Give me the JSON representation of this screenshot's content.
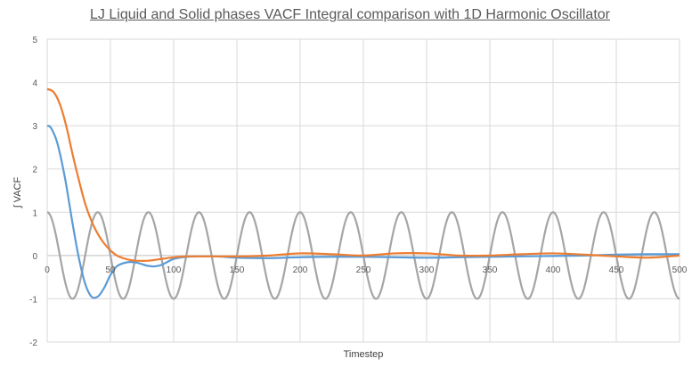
{
  "chart_data": {
    "type": "line",
    "title": "LJ Liquid and Solid phases VACF Integral comparison with 1D Harmonic Oscillator",
    "xlabel": "Timestep",
    "ylabel": "∫ VACF",
    "xlim": [
      0,
      500
    ],
    "ylim": [
      -2,
      5
    ],
    "x_ticks": [
      "0",
      "50",
      "100",
      "150",
      "200",
      "250",
      "300",
      "350",
      "400",
      "450",
      "500"
    ],
    "y_ticks": [
      "-2",
      "-1",
      "0",
      "1",
      "2",
      "3",
      "4",
      "5"
    ],
    "grid": true,
    "legend": "none",
    "series": [
      {
        "color": "#a5a5a5",
        "period": 40,
        "amplitude": 1,
        "x": [
          0,
          10,
          20,
          30,
          40,
          50,
          60,
          70,
          80,
          90,
          100,
          110,
          120,
          130,
          140,
          150,
          160,
          170,
          180,
          190,
          200,
          210,
          220,
          230,
          240,
          250,
          260,
          270,
          280,
          290,
          300,
          310,
          320,
          330,
          340,
          350,
          360,
          370,
          380,
          390,
          400,
          410,
          420,
          430,
          440,
          450,
          460,
          470,
          480,
          490,
          500
        ],
        "y": [
          1,
          0,
          -1,
          0,
          1,
          0,
          -1,
          0,
          1,
          0,
          -1,
          0,
          1,
          0,
          -1,
          0,
          1,
          0,
          -1,
          0,
          1,
          0,
          -1,
          0,
          1,
          0,
          -1,
          0,
          1,
          0,
          -1,
          0,
          1,
          0,
          -1,
          0,
          1,
          0,
          -1,
          0,
          1,
          0,
          -1,
          0,
          1,
          0,
          -1,
          0,
          1,
          0,
          -1
        ]
      },
      {
        "color": "#5b9bd5",
        "x": [
          0,
          3,
          8,
          14,
          20,
          25,
          30,
          35,
          40,
          45,
          50,
          55,
          60,
          65,
          70,
          75,
          80,
          85,
          90,
          95,
          100,
          110,
          120,
          130,
          140,
          150,
          175,
          200,
          225,
          250,
          275,
          300,
          325,
          350,
          375,
          400,
          425,
          450,
          475,
          500
        ],
        "y": [
          3.0,
          2.95,
          2.6,
          1.8,
          0.75,
          -0.05,
          -0.65,
          -0.95,
          -0.95,
          -0.75,
          -0.45,
          -0.25,
          -0.18,
          -0.15,
          -0.16,
          -0.2,
          -0.24,
          -0.25,
          -0.22,
          -0.15,
          -0.08,
          -0.03,
          -0.02,
          -0.02,
          -0.03,
          -0.05,
          -0.06,
          -0.04,
          -0.03,
          -0.03,
          -0.04,
          -0.05,
          -0.04,
          -0.03,
          -0.02,
          -0.01,
          0.0,
          0.02,
          0.03,
          0.03
        ]
      },
      {
        "color": "#ed7d31",
        "x": [
          0,
          5,
          10,
          15,
          20,
          25,
          30,
          35,
          40,
          45,
          50,
          55,
          60,
          65,
          70,
          80,
          90,
          100,
          110,
          120,
          130,
          140,
          150,
          175,
          200,
          225,
          250,
          275,
          300,
          325,
          350,
          375,
          400,
          425,
          450,
          475,
          500
        ],
        "y": [
          3.85,
          3.78,
          3.5,
          3.0,
          2.35,
          1.75,
          1.2,
          0.8,
          0.5,
          0.28,
          0.12,
          0.0,
          -0.06,
          -0.1,
          -0.12,
          -0.12,
          -0.08,
          -0.04,
          -0.02,
          -0.02,
          -0.02,
          -0.02,
          -0.02,
          0.0,
          0.05,
          0.03,
          0.0,
          0.05,
          0.05,
          0.0,
          0.0,
          0.03,
          0.05,
          0.02,
          -0.02,
          -0.05,
          0.0
        ]
      }
    ]
  }
}
